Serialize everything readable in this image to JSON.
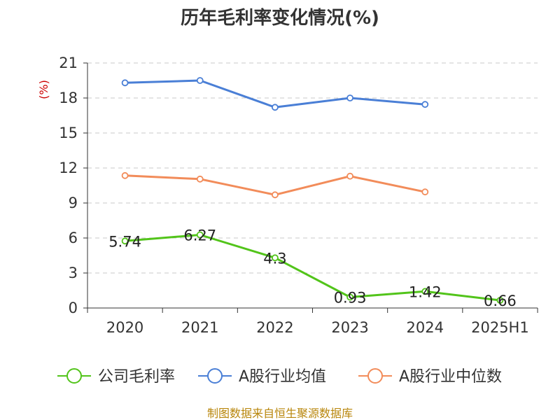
{
  "chart_data": {
    "type": "line",
    "title": "历年毛利率变化情况(%)",
    "unit_label": "(%)",
    "categories": [
      "2020",
      "2021",
      "2022",
      "2023",
      "2024",
      "2025H1"
    ],
    "ylim": [
      0,
      21
    ],
    "yticks": [
      0,
      3,
      6,
      9,
      12,
      15,
      18,
      21
    ],
    "grid": true,
    "legend_position": "bottom",
    "series": [
      {
        "name": "公司毛利率",
        "color": "#52c41a",
        "values": [
          5.74,
          6.27,
          4.3,
          0.93,
          1.42,
          0.66
        ],
        "labels": [
          "5.74",
          "6.27",
          "4.3",
          "0.93",
          "1.42",
          "0.66"
        ]
      },
      {
        "name": "A股行业均值",
        "color": "#4a7fd6",
        "values": [
          19.3,
          19.5,
          17.2,
          18.0,
          17.45,
          null
        ]
      },
      {
        "name": "A股行业中位数",
        "color": "#f28c5a",
        "values": [
          11.35,
          11.05,
          9.7,
          11.3,
          9.95,
          null
        ]
      }
    ]
  },
  "footer": "制图数据来自恒生聚源数据库"
}
